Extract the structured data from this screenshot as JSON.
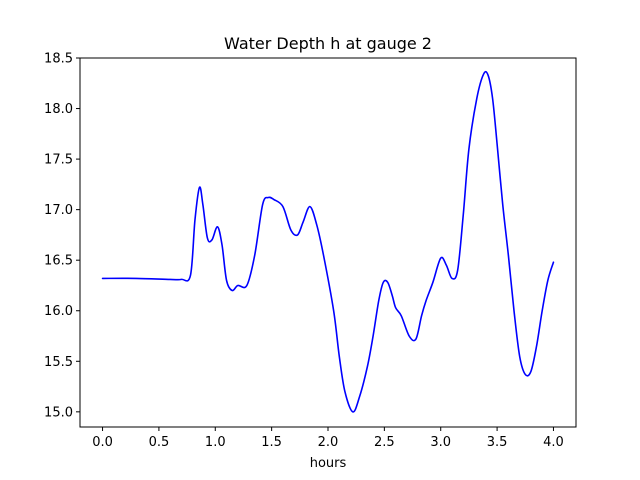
{
  "chart_data": {
    "type": "line",
    "title": "Water Depth h at gauge 2",
    "xlabel": "hours",
    "ylabel": "",
    "xlim": [
      -0.2,
      4.2
    ],
    "ylim": [
      14.85,
      18.5
    ],
    "xticks": [
      0.0,
      0.5,
      1.0,
      1.5,
      2.0,
      2.5,
      3.0,
      3.5,
      4.0
    ],
    "xtick_labels": [
      "0.0",
      "0.5",
      "1.0",
      "1.5",
      "2.0",
      "2.5",
      "3.0",
      "3.5",
      "4.0"
    ],
    "yticks": [
      15.0,
      15.5,
      16.0,
      16.5,
      17.0,
      17.5,
      18.0,
      18.5
    ],
    "ytick_labels": [
      "15.0",
      "15.5",
      "16.0",
      "16.5",
      "17.0",
      "17.5",
      "18.0",
      "18.5"
    ],
    "grid": false,
    "series": [
      {
        "color": "#0000ff",
        "x": [
          0.0,
          0.3,
          0.6,
          0.7,
          0.78,
          0.82,
          0.86,
          0.89,
          0.93,
          0.97,
          1.02,
          1.06,
          1.1,
          1.15,
          1.2,
          1.28,
          1.35,
          1.42,
          1.47,
          1.52,
          1.6,
          1.67,
          1.73,
          1.78,
          1.84,
          1.9,
          1.96,
          2.05,
          2.1,
          2.15,
          2.22,
          2.28,
          2.35,
          2.4,
          2.45,
          2.49,
          2.53,
          2.57,
          2.6,
          2.65,
          2.72,
          2.78,
          2.83,
          2.87,
          2.93,
          3.0,
          3.05,
          3.1,
          3.15,
          3.2,
          3.25,
          3.32,
          3.38,
          3.42,
          3.46,
          3.5,
          3.55,
          3.6,
          3.65,
          3.7,
          3.75,
          3.8,
          3.85,
          3.9,
          3.95,
          4.0
        ],
        "y": [
          16.32,
          16.32,
          16.31,
          16.31,
          16.35,
          16.9,
          17.22,
          17.05,
          16.72,
          16.7,
          16.83,
          16.65,
          16.3,
          16.2,
          16.25,
          16.25,
          16.55,
          17.05,
          17.12,
          17.1,
          17.03,
          16.8,
          16.75,
          16.88,
          17.03,
          16.85,
          16.55,
          16.0,
          15.55,
          15.2,
          15.0,
          15.15,
          15.45,
          15.75,
          16.1,
          16.28,
          16.28,
          16.15,
          16.03,
          15.95,
          15.75,
          15.72,
          15.95,
          16.1,
          16.28,
          16.52,
          16.45,
          16.32,
          16.4,
          16.95,
          17.6,
          18.1,
          18.34,
          18.33,
          18.1,
          17.65,
          17.05,
          16.55,
          16.0,
          15.55,
          15.37,
          15.4,
          15.65,
          16.0,
          16.3,
          16.48
        ]
      }
    ]
  }
}
